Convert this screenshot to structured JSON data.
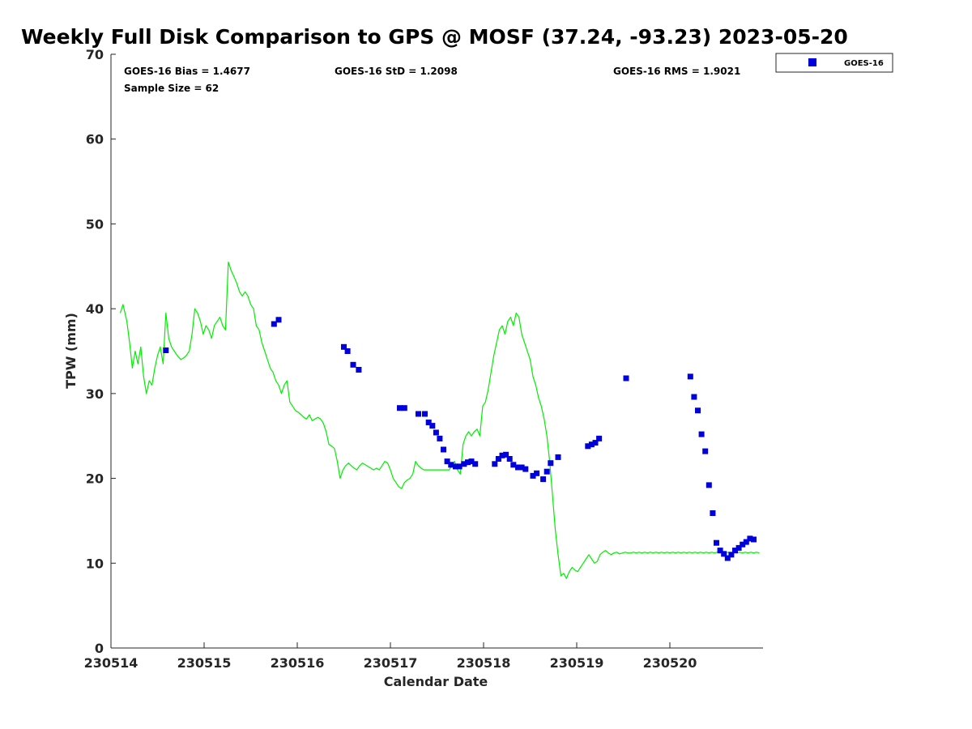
{
  "chart_data": {
    "type": "scatter",
    "title": "Weekly Full Disk Comparison to GPS @ MOSF (37.24, -93.23) 2023-05-20",
    "xlabel": "Calendar Date",
    "ylabel": "TPW (mm)",
    "xlim": [
      0,
      7
    ],
    "ylim": [
      0,
      70
    ],
    "x_tick_values": [
      0,
      1,
      2,
      3,
      4,
      5,
      6
    ],
    "x_tick_labels": [
      "230514",
      "230515",
      "230516",
      "230517",
      "230518",
      "230519",
      "230520"
    ],
    "y_ticks": [
      0,
      10,
      20,
      30,
      40,
      50,
      60,
      70
    ],
    "stats": {
      "bias": "GOES-16 Bias = 1.4677",
      "std": "GOES-16 StD = 1.2098",
      "rms": "GOES-16 RMS = 1.9021",
      "sample": "Sample Size = 62"
    },
    "legend": {
      "position": "top-right",
      "entries": [
        "GOES-16"
      ]
    },
    "colors": {
      "gps_line": "#00ee00",
      "goes_marker": "#0000dd",
      "axis": "#262626"
    },
    "gps_series": {
      "name": "GPS",
      "x": [
        0.1,
        0.13,
        0.17,
        0.2,
        0.23,
        0.26,
        0.29,
        0.32,
        0.35,
        0.38,
        0.41,
        0.44,
        0.47,
        0.5,
        0.53,
        0.56,
        0.59,
        0.62,
        0.65,
        0.68,
        0.71,
        0.75,
        0.78,
        0.81,
        0.84,
        0.87,
        0.9,
        0.93,
        0.96,
        0.99,
        1.02,
        1.05,
        1.08,
        1.11,
        1.14,
        1.17,
        1.2,
        1.23,
        1.26,
        1.29,
        1.32,
        1.35,
        1.38,
        1.41,
        1.44,
        1.47,
        1.5,
        1.53,
        1.56,
        1.59,
        1.62,
        1.65,
        1.68,
        1.71,
        1.74,
        1.77,
        1.8,
        1.83,
        1.86,
        1.89,
        1.92,
        1.95,
        1.98,
        2.01,
        2.04,
        2.07,
        2.1,
        2.13,
        2.16,
        2.19,
        2.22,
        2.25,
        2.28,
        2.31,
        2.34,
        2.37,
        2.4,
        2.43,
        2.46,
        2.49,
        2.52,
        2.55,
        2.58,
        2.61,
        2.64,
        2.67,
        2.7,
        2.73,
        2.76,
        2.79,
        2.82,
        2.85,
        2.88,
        2.91,
        2.94,
        2.97,
        3.0,
        3.03,
        3.06,
        3.09,
        3.12,
        3.15,
        3.18,
        3.21,
        3.24,
        3.27,
        3.3,
        3.33,
        3.36,
        3.39,
        3.42,
        3.45,
        3.48,
        3.51,
        3.54,
        3.57,
        3.6,
        3.63,
        3.66,
        3.69,
        3.72,
        3.75,
        3.78,
        3.81,
        3.84,
        3.87,
        3.9,
        3.93,
        3.96,
        3.99,
        4.02,
        4.05,
        4.08,
        4.11,
        4.14,
        4.17,
        4.2,
        4.23,
        4.26,
        4.29,
        4.32,
        4.35,
        4.38,
        4.41,
        4.44,
        4.47,
        4.5,
        4.53,
        4.56,
        4.59,
        4.62,
        4.65,
        4.68,
        4.71,
        4.74,
        4.77,
        4.8,
        4.83,
        4.86,
        4.89,
        4.92,
        4.95,
        4.98,
        5.01,
        5.04,
        5.07,
        5.1,
        5.13,
        5.16,
        5.19,
        5.22,
        5.25,
        5.28,
        5.31,
        5.34,
        5.37,
        5.4,
        5.43,
        5.46,
        5.49,
        5.52,
        5.55,
        5.58,
        5.61,
        5.64,
        5.67,
        5.7,
        5.73,
        5.76,
        5.79,
        5.82,
        5.85,
        5.88,
        5.91,
        5.94,
        5.97,
        6.0,
        6.03,
        6.06,
        6.09,
        6.12,
        6.15,
        6.18,
        6.21,
        6.24,
        6.27,
        6.3,
        6.33,
        6.36,
        6.39,
        6.42,
        6.45,
        6.48,
        6.51,
        6.54,
        6.57,
        6.6,
        6.63,
        6.66,
        6.69,
        6.72,
        6.75,
        6.78,
        6.81,
        6.84,
        6.87,
        6.9,
        6.93,
        6.96
      ],
      "y": [
        39.5,
        40.5,
        38.5,
        36.0,
        33.0,
        35.0,
        33.5,
        35.5,
        32.0,
        30.0,
        31.5,
        31.0,
        33.0,
        34.5,
        35.5,
        33.5,
        39.5,
        36.5,
        35.5,
        35.0,
        34.5,
        34.0,
        34.2,
        34.5,
        35.0,
        37.0,
        40.0,
        39.5,
        38.5,
        37.0,
        38.0,
        37.5,
        36.5,
        38.0,
        38.5,
        39.0,
        38.0,
        37.5,
        45.5,
        44.5,
        43.8,
        43.0,
        42.0,
        41.5,
        42.0,
        41.5,
        40.5,
        40.0,
        38.0,
        37.5,
        36.0,
        35.0,
        34.0,
        33.0,
        32.5,
        31.5,
        31.0,
        30.0,
        31.0,
        31.5,
        29.0,
        28.5,
        28.0,
        27.8,
        27.5,
        27.2,
        27.0,
        27.5,
        26.8,
        27.0,
        27.2,
        27.0,
        26.5,
        25.5,
        24.0,
        23.8,
        23.5,
        22.0,
        20.0,
        21.0,
        21.5,
        21.8,
        21.5,
        21.2,
        21.0,
        21.5,
        21.8,
        21.6,
        21.4,
        21.2,
        21.0,
        21.2,
        21.0,
        21.5,
        22.0,
        21.8,
        21.0,
        20.0,
        19.5,
        19.0,
        18.8,
        19.5,
        19.8,
        20.0,
        20.5,
        22.0,
        21.5,
        21.2,
        21.0,
        21.0,
        21.0,
        21.0,
        21.0,
        21.0,
        21.0,
        21.0,
        21.0,
        21.0,
        21.5,
        22.0,
        21.0,
        20.5,
        24.0,
        25.0,
        25.5,
        25.0,
        25.5,
        25.8,
        25.0,
        28.5,
        29.0,
        30.5,
        32.5,
        34.5,
        36.0,
        37.5,
        38.0,
        37.0,
        38.5,
        39.0,
        38.0,
        39.5,
        39.0,
        37.0,
        36.0,
        35.0,
        34.0,
        32.0,
        31.0,
        29.5,
        28.5,
        27.0,
        25.0,
        22.0,
        18.0,
        14.0,
        11.0,
        8.5,
        8.8,
        8.2,
        9.0,
        9.5,
        9.2,
        9.0,
        9.5,
        10.0,
        10.5,
        11.0,
        10.5,
        10.0,
        10.2,
        11.0,
        11.3,
        11.5,
        11.2,
        11.0,
        11.2,
        11.3,
        11.1,
        11.2,
        11.3,
        11.2,
        11.2,
        11.3,
        11.2,
        11.3,
        11.2,
        11.3,
        11.2,
        11.3,
        11.2,
        11.3,
        11.2,
        11.3,
        11.2,
        11.3,
        11.2,
        11.3,
        11.2,
        11.3,
        11.2,
        11.3,
        11.2,
        11.3,
        11.2,
        11.3,
        11.2,
        11.3,
        11.2,
        11.3,
        11.2,
        11.3,
        11.2,
        11.3,
        11.2,
        11.3,
        11.2,
        11.3,
        11.2,
        11.3,
        11.2,
        11.3,
        11.2,
        11.3,
        11.2,
        11.3,
        11.2,
        11.3,
        11.2
      ]
    },
    "goes_series": {
      "name": "GOES-16",
      "points": [
        [
          0.59,
          35.1
        ],
        [
          1.75,
          38.2
        ],
        [
          1.8,
          38.7
        ],
        [
          2.5,
          35.5
        ],
        [
          2.54,
          35.0
        ],
        [
          2.6,
          33.4
        ],
        [
          2.66,
          32.8
        ],
        [
          3.1,
          28.3
        ],
        [
          3.15,
          28.3
        ],
        [
          3.3,
          27.6
        ],
        [
          3.37,
          27.6
        ],
        [
          3.41,
          26.6
        ],
        [
          3.45,
          26.2
        ],
        [
          3.49,
          25.4
        ],
        [
          3.53,
          24.7
        ],
        [
          3.57,
          23.4
        ],
        [
          3.61,
          22.0
        ],
        [
          3.65,
          21.6
        ],
        [
          3.7,
          21.4
        ],
        [
          3.74,
          21.4
        ],
        [
          3.79,
          21.7
        ],
        [
          3.83,
          21.9
        ],
        [
          3.87,
          22.0
        ],
        [
          3.91,
          21.7
        ],
        [
          4.12,
          21.7
        ],
        [
          4.16,
          22.3
        ],
        [
          4.2,
          22.7
        ],
        [
          4.24,
          22.8
        ],
        [
          4.28,
          22.3
        ],
        [
          4.32,
          21.6
        ],
        [
          4.37,
          21.3
        ],
        [
          4.41,
          21.3
        ],
        [
          4.45,
          21.1
        ],
        [
          4.53,
          20.3
        ],
        [
          4.57,
          20.6
        ],
        [
          4.64,
          19.9
        ],
        [
          4.68,
          20.8
        ],
        [
          4.72,
          21.8
        ],
        [
          4.8,
          22.5
        ],
        [
          5.12,
          23.8
        ],
        [
          5.16,
          24.0
        ],
        [
          5.2,
          24.2
        ],
        [
          5.24,
          24.7
        ],
        [
          5.53,
          31.8
        ],
        [
          6.22,
          32.0
        ],
        [
          6.26,
          29.6
        ],
        [
          6.3,
          28.0
        ],
        [
          6.34,
          25.2
        ],
        [
          6.38,
          23.2
        ],
        [
          6.42,
          19.2
        ],
        [
          6.46,
          15.9
        ],
        [
          6.5,
          12.4
        ],
        [
          6.54,
          11.5
        ],
        [
          6.58,
          11.1
        ],
        [
          6.62,
          10.6
        ],
        [
          6.66,
          11.0
        ],
        [
          6.7,
          11.5
        ],
        [
          6.74,
          11.8
        ],
        [
          6.78,
          12.2
        ],
        [
          6.82,
          12.5
        ],
        [
          6.86,
          12.9
        ],
        [
          6.9,
          12.8
        ]
      ]
    }
  }
}
